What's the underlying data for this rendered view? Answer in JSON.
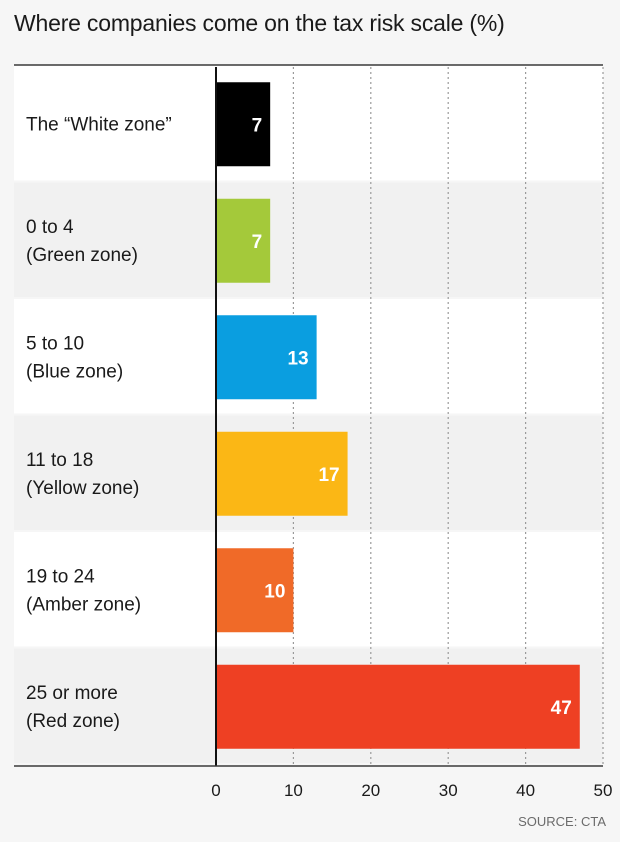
{
  "title": "Where companies come on the tax risk scale (%)",
  "source": "SOURCE: CTA",
  "chart_data": {
    "type": "bar",
    "orientation": "horizontal",
    "title": "Where companies come on the tax risk scale (%)",
    "categories": [
      [
        "The “White zone”"
      ],
      [
        "0 to 4",
        "(Green zone)"
      ],
      [
        "5 to 10",
        "(Blue zone)"
      ],
      [
        "11 to 18",
        "(Yellow zone)"
      ],
      [
        "19 to 24",
        "(Amber zone)"
      ],
      [
        "25 or more",
        "(Red zone)"
      ]
    ],
    "values": [
      7,
      7,
      13,
      17,
      10,
      47
    ],
    "colors": [
      "#000000",
      "#a4c93a",
      "#0a9ee0",
      "#fbb715",
      "#f06a28",
      "#ee4023"
    ],
    "xlim": [
      0,
      50
    ],
    "xticks": [
      0,
      10,
      20,
      30,
      40,
      50
    ],
    "grid": true,
    "legend": "none",
    "data_labels": true
  }
}
